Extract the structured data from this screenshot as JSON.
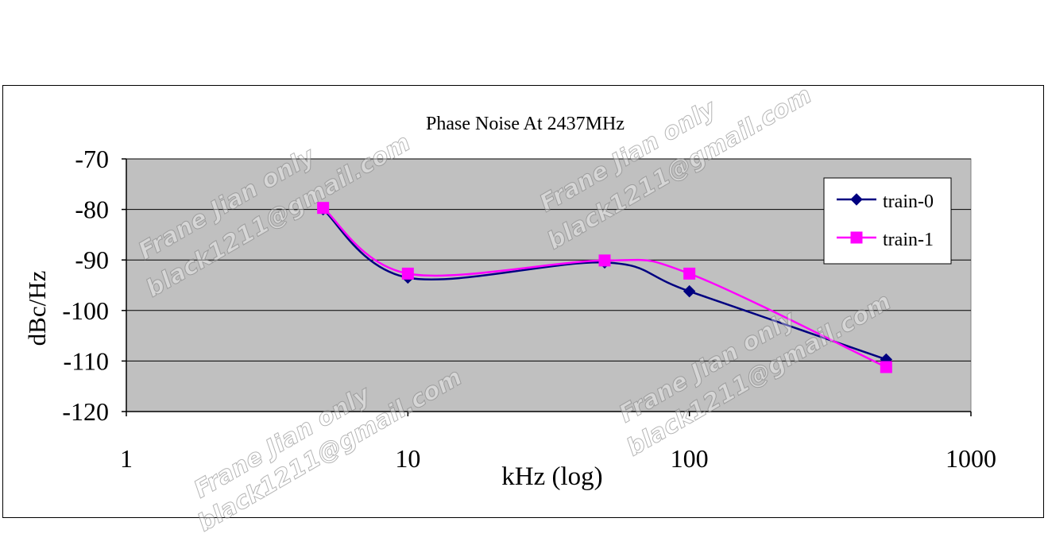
{
  "chart_data": {
    "type": "line",
    "title": "Phase Noise At 2437MHz",
    "xlabel": "kHz (log)",
    "ylabel": "dBc/Hz",
    "x_scale": "log",
    "xlim": [
      1,
      1000
    ],
    "ylim": [
      -120,
      -70
    ],
    "x_ticks": [
      "1",
      "10",
      "100",
      "1000"
    ],
    "y_ticks": [
      "-70",
      "-80",
      "-90",
      "-100",
      "-110",
      "-120"
    ],
    "grid": "horizontal",
    "legend_position": "right",
    "plot_background": "#c0c0c0",
    "series": [
      {
        "name": "train-0",
        "color": "#000080",
        "marker": "diamond",
        "x": [
          5,
          10,
          50,
          100,
          500
        ],
        "y": [
          -80,
          -93.5,
          -90.5,
          -96.2,
          -109.7
        ]
      },
      {
        "name": "train-1",
        "color": "#ff00ff",
        "marker": "square",
        "x": [
          5,
          10,
          50,
          100,
          500
        ],
        "y": [
          -79.7,
          -92.7,
          -90.1,
          -92.7,
          -111.2
        ]
      }
    ]
  },
  "watermarks": [
    "Frane Jian only",
    "black1211@gmail.com"
  ]
}
